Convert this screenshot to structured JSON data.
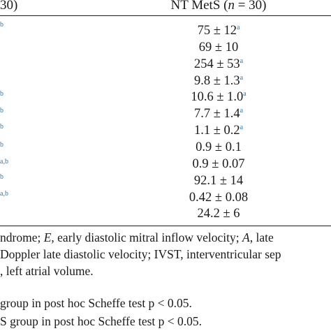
{
  "header": {
    "left_col_tail": "30)",
    "right_col": {
      "prefix": "NT MetS (",
      "n_symbol": "n",
      "suffix": " = 30)"
    }
  },
  "left_column_superscripts": [
    {
      "text": "b"
    },
    {
      "text": "b"
    },
    {
      "text": "b"
    },
    {
      "text": "b"
    },
    {
      "text": "b"
    },
    {
      "text": "a,b"
    },
    {
      "text": "b"
    },
    {
      "text": "a,b"
    }
  ],
  "rows": [
    {
      "value": "75 ± 12",
      "sup": "a"
    },
    {
      "value": "69 ± 10",
      "sup": ""
    },
    {
      "value": "254 ± 53",
      "sup": "a"
    },
    {
      "value": "9.8 ± 1.3",
      "sup": "a"
    },
    {
      "value": "10.6 ± 1.0",
      "sup": "a"
    },
    {
      "value": "7.7 ± 1.4",
      "sup": "a"
    },
    {
      "value": "1.1 ± 0.2",
      "sup": "a"
    },
    {
      "value": "0.9 ± 0.1",
      "sup": ""
    },
    {
      "value": "0.9 ± 0.07",
      "sup": ""
    },
    {
      "value": "92.1 ± 14",
      "sup": ""
    },
    {
      "value": "0.42 ± 0.08",
      "sup": ""
    },
    {
      "value": "24.2 ± 6",
      "sup": ""
    }
  ],
  "footnotes": {
    "line1": {
      "a": "ndrome; ",
      "b": "E",
      "c": ", early diastolic mitral inflow velocity; ",
      "d": "A",
      "e": ", late"
    },
    "line2": "Doppler late diastolic velocity; IVST, interventricular sep",
    "line3": ", left atrial volume.",
    "line4": "group in post hoc Scheffe test p < 0.05.",
    "line5": "S group in post hoc Scheffe test p < 0.05."
  },
  "colors": {
    "superscript": "#2a7ab8",
    "text": "#1a1a1a"
  }
}
